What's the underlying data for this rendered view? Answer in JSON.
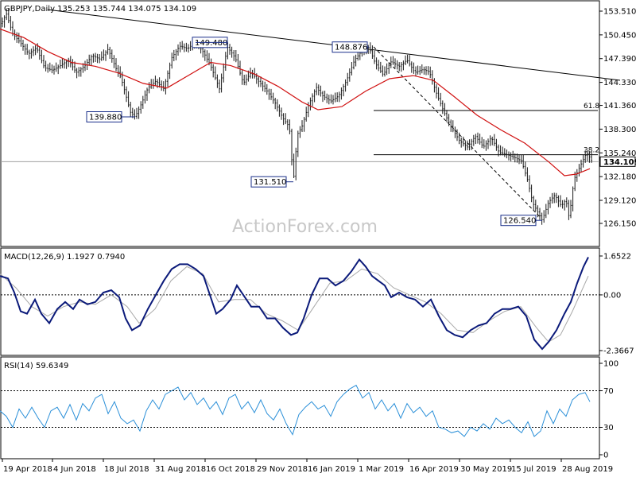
{
  "chart_data": [
    {
      "type": "candlestick",
      "symbol_line": "GBPJPY,Daily  135.253 135.744 134.075 134.109",
      "current_price": "134.109",
      "watermark": "ActionForex.com",
      "y_ticks": [
        "153.510",
        "150.450",
        "147.390",
        "144.330",
        "141.360",
        "138.300",
        "135.240",
        "132.180",
        "129.120",
        "126.150"
      ],
      "ylim": [
        126.15,
        153.51
      ],
      "x_ticks": [
        "19 Apr 2018",
        "4 Jun 2018",
        "18 Jul 2018",
        "31 Aug 2018",
        "16 Oct 2018",
        "29 Nov 2018",
        "16 Jan 2019",
        "1 Mar 2019",
        "16 Apr 2019",
        "30 May 2019",
        "15 Jul 2019",
        "28 Aug 2019"
      ],
      "price_path": [
        [
          0,
          151.5
        ],
        [
          8,
          153.2
        ],
        [
          16,
          150.6
        ],
        [
          26,
          149.4
        ],
        [
          36,
          148.0
        ],
        [
          46,
          148.8
        ],
        [
          56,
          146.2
        ],
        [
          66,
          145.9
        ],
        [
          76,
          146.5
        ],
        [
          86,
          147.2
        ],
        [
          96,
          145.6
        ],
        [
          106,
          146.4
        ],
        [
          116,
          147.8
        ],
        [
          126,
          147.3
        ],
        [
          136,
          148.6
        ],
        [
          146,
          146.1
        ],
        [
          152,
          145.0
        ],
        [
          158,
          142.8
        ],
        [
          164,
          140.5
        ],
        [
          170,
          139.88
        ],
        [
          178,
          141.6
        ],
        [
          186,
          143.6
        ],
        [
          196,
          144.5
        ],
        [
          206,
          143.5
        ],
        [
          216,
          147.5
        ],
        [
          226,
          149.0
        ],
        [
          236,
          148.7
        ],
        [
          246,
          149.48
        ],
        [
          256,
          148.2
        ],
        [
          266,
          146.2
        ],
        [
          276,
          143.5
        ],
        [
          286,
          148.9
        ],
        [
          296,
          147.5
        ],
        [
          306,
          144.2
        ],
        [
          316,
          145.6
        ],
        [
          326,
          144.4
        ],
        [
          336,
          143.2
        ],
        [
          346,
          141.7
        ],
        [
          356,
          139.7
        ],
        [
          364,
          138.6
        ],
        [
          369,
          131.51
        ],
        [
          374,
          137.6
        ],
        [
          380,
          138.7
        ],
        [
          388,
          141.4
        ],
        [
          398,
          143.7
        ],
        [
          406,
          142.6
        ],
        [
          416,
          141.9
        ],
        [
          426,
          142.6
        ],
        [
          436,
          144.6
        ],
        [
          446,
          147.2
        ],
        [
          456,
          148.5
        ],
        [
          464,
          148.876
        ],
        [
          472,
          146.8
        ],
        [
          482,
          145.3
        ],
        [
          492,
          147.0
        ],
        [
          502,
          146.4
        ],
        [
          512,
          147.2
        ],
        [
          522,
          145.6
        ],
        [
          532,
          146.0
        ],
        [
          540,
          145.7
        ],
        [
          548,
          143.2
        ],
        [
          558,
          140.6
        ],
        [
          568,
          138.5
        ],
        [
          578,
          136.8
        ],
        [
          588,
          136.0
        ],
        [
          598,
          137.4
        ],
        [
          608,
          136.0
        ],
        [
          618,
          137.2
        ],
        [
          628,
          135.3
        ],
        [
          638,
          135.0
        ],
        [
          648,
          134.6
        ],
        [
          656,
          134.2
        ],
        [
          664,
          131.6
        ],
        [
          670,
          128.8
        ],
        [
          676,
          127.7
        ],
        [
          682,
          126.54
        ],
        [
          690,
          128.9
        ],
        [
          698,
          129.8
        ],
        [
          706,
          128.4
        ],
        [
          712,
          129.2
        ],
        [
          716,
          126.8
        ],
        [
          722,
          131.8
        ],
        [
          730,
          133.6
        ],
        [
          738,
          135.3
        ],
        [
          745,
          134.109
        ]
      ],
      "sma_path": [
        [
          0,
          151.2
        ],
        [
          30,
          150.1
        ],
        [
          60,
          148.3
        ],
        [
          90,
          146.9
        ],
        [
          120,
          146.4
        ],
        [
          150,
          145.5
        ],
        [
          180,
          144.2
        ],
        [
          210,
          143.6
        ],
        [
          240,
          145.4
        ],
        [
          265,
          146.9
        ],
        [
          290,
          146.5
        ],
        [
          320,
          145.4
        ],
        [
          350,
          143.8
        ],
        [
          380,
          141.8
        ],
        [
          400,
          140.8
        ],
        [
          430,
          141.2
        ],
        [
          460,
          143.2
        ],
        [
          490,
          144.8
        ],
        [
          520,
          145.2
        ],
        [
          545,
          144.6
        ],
        [
          570,
          142.6
        ],
        [
          600,
          140.1
        ],
        [
          630,
          138.2
        ],
        [
          660,
          136.5
        ],
        [
          690,
          134.1
        ],
        [
          710,
          132.3
        ],
        [
          725,
          132.5
        ],
        [
          742,
          133.2
        ]
      ],
      "trendline": [
        [
          60,
          153.7
        ],
        [
          780,
          144.6
        ]
      ],
      "channel_line": [
        [
          470,
          148.9
        ],
        [
          680,
          126.9
        ]
      ],
      "fibonacci": [
        {
          "label": "61.8",
          "value": 140.7
        },
        {
          "label": "38.2",
          "value": 135.0
        }
      ],
      "annotations": [
        {
          "label": "149.480",
          "value": 149.48,
          "box_x": 242,
          "anchor_x": 246,
          "anchor_y": 149.48
        },
        {
          "label": "148.876",
          "value": 148.876,
          "box_x": 418,
          "anchor_x": 464,
          "anchor_y": 148.876
        },
        {
          "label": "139.880",
          "value": 139.88,
          "box_x": 109,
          "anchor_x": 170,
          "anchor_y": 139.88
        },
        {
          "label": "131.510",
          "value": 131.51,
          "box_x": 316,
          "anchor_x": 369,
          "anchor_y": 131.51
        },
        {
          "label": "126.540",
          "value": 126.54,
          "box_x": 630,
          "anchor_x": 682,
          "anchor_y": 126.54
        }
      ]
    },
    {
      "type": "line",
      "title": "MACD(12,26,9) 1.1927 0.7940",
      "y_ticks": [
        "1.6522",
        "0.00",
        "-2.3667"
      ],
      "ylim": [
        -2.3667,
        1.6522
      ],
      "zero_line": 0,
      "macd_path": [
        [
          0,
          0.8
        ],
        [
          10,
          0.7
        ],
        [
          18,
          0.1
        ],
        [
          26,
          -0.7
        ],
        [
          34,
          -0.8
        ],
        [
          44,
          -0.2
        ],
        [
          52,
          -0.8
        ],
        [
          62,
          -1.2
        ],
        [
          72,
          -0.6
        ],
        [
          82,
          -0.3
        ],
        [
          92,
          -0.6
        ],
        [
          100,
          -0.2
        ],
        [
          110,
          -0.4
        ],
        [
          120,
          -0.3
        ],
        [
          130,
          0.1
        ],
        [
          140,
          0.2
        ],
        [
          150,
          -0.1
        ],
        [
          158,
          -1.0
        ],
        [
          166,
          -1.5
        ],
        [
          176,
          -1.3
        ],
        [
          186,
          -0.6
        ],
        [
          196,
          0.0
        ],
        [
          206,
          0.6
        ],
        [
          216,
          1.1
        ],
        [
          226,
          1.3
        ],
        [
          236,
          1.3
        ],
        [
          246,
          1.1
        ],
        [
          256,
          0.8
        ],
        [
          264,
          0.0
        ],
        [
          272,
          -0.8
        ],
        [
          280,
          -0.6
        ],
        [
          290,
          -0.2
        ],
        [
          298,
          0.4
        ],
        [
          306,
          0.0
        ],
        [
          316,
          -0.5
        ],
        [
          326,
          -0.5
        ],
        [
          336,
          -1.0
        ],
        [
          346,
          -1.0
        ],
        [
          356,
          -1.4
        ],
        [
          366,
          -1.7
        ],
        [
          374,
          -1.6
        ],
        [
          382,
          -1.0
        ],
        [
          392,
          0.0
        ],
        [
          402,
          0.7
        ],
        [
          412,
          0.7
        ],
        [
          422,
          0.4
        ],
        [
          432,
          0.6
        ],
        [
          442,
          1.0
        ],
        [
          452,
          1.5
        ],
        [
          460,
          1.2
        ],
        [
          468,
          0.8
        ],
        [
          476,
          0.6
        ],
        [
          484,
          0.4
        ],
        [
          492,
          -0.1
        ],
        [
          502,
          0.1
        ],
        [
          512,
          -0.1
        ],
        [
          522,
          -0.2
        ],
        [
          532,
          -0.5
        ],
        [
          542,
          -0.2
        ],
        [
          552,
          -0.9
        ],
        [
          562,
          -1.5
        ],
        [
          572,
          -1.7
        ],
        [
          582,
          -1.8
        ],
        [
          592,
          -1.5
        ],
        [
          602,
          -1.3
        ],
        [
          612,
          -1.2
        ],
        [
          622,
          -0.8
        ],
        [
          632,
          -0.6
        ],
        [
          642,
          -0.6
        ],
        [
          652,
          -0.5
        ],
        [
          662,
          -0.9
        ],
        [
          672,
          -1.9
        ],
        [
          682,
          -2.3
        ],
        [
          690,
          -2.0
        ],
        [
          700,
          -1.5
        ],
        [
          710,
          -0.8
        ],
        [
          718,
          -0.3
        ],
        [
          726,
          0.5
        ],
        [
          734,
          1.2
        ],
        [
          740,
          1.6
        ]
      ],
      "signal_path": [
        [
          0,
          0.9
        ],
        [
          20,
          0.3
        ],
        [
          40,
          -0.5
        ],
        [
          60,
          -0.9
        ],
        [
          80,
          -0.5
        ],
        [
          100,
          -0.3
        ],
        [
          120,
          -0.4
        ],
        [
          140,
          0.0
        ],
        [
          160,
          -0.5
        ],
        [
          175,
          -1.2
        ],
        [
          195,
          -0.6
        ],
        [
          215,
          0.6
        ],
        [
          235,
          1.2
        ],
        [
          255,
          0.9
        ],
        [
          275,
          -0.3
        ],
        [
          295,
          -0.2
        ],
        [
          315,
          -0.2
        ],
        [
          335,
          -0.8
        ],
        [
          355,
          -1.1
        ],
        [
          375,
          -1.5
        ],
        [
          395,
          -0.5
        ],
        [
          415,
          0.5
        ],
        [
          435,
          0.6
        ],
        [
          455,
          1.1
        ],
        [
          475,
          0.9
        ],
        [
          495,
          0.3
        ],
        [
          515,
          0.0
        ],
        [
          535,
          -0.3
        ],
        [
          555,
          -0.8
        ],
        [
          575,
          -1.5
        ],
        [
          595,
          -1.6
        ],
        [
          615,
          -1.1
        ],
        [
          635,
          -0.7
        ],
        [
          655,
          -0.5
        ],
        [
          675,
          -1.4
        ],
        [
          690,
          -2.0
        ],
        [
          705,
          -1.7
        ],
        [
          720,
          -0.7
        ],
        [
          740,
          0.8
        ]
      ]
    },
    {
      "type": "line",
      "title": "RSI(14) 59.6349",
      "y_ticks": [
        "100",
        "70",
        "30",
        "0"
      ],
      "ylim": [
        0,
        100
      ],
      "reference_lines": [
        70,
        30
      ],
      "rsi_path": [
        [
          0,
          48
        ],
        [
          8,
          42
        ],
        [
          16,
          30
        ],
        [
          24,
          50
        ],
        [
          32,
          40
        ],
        [
          40,
          52
        ],
        [
          48,
          40
        ],
        [
          56,
          30
        ],
        [
          64,
          48
        ],
        [
          72,
          52
        ],
        [
          80,
          40
        ],
        [
          88,
          55
        ],
        [
          96,
          38
        ],
        [
          104,
          56
        ],
        [
          112,
          48
        ],
        [
          120,
          62
        ],
        [
          128,
          66
        ],
        [
          136,
          45
        ],
        [
          144,
          58
        ],
        [
          152,
          40
        ],
        [
          160,
          34
        ],
        [
          168,
          38
        ],
        [
          176,
          26
        ],
        [
          184,
          48
        ],
        [
          192,
          60
        ],
        [
          200,
          50
        ],
        [
          208,
          66
        ],
        [
          216,
          70
        ],
        [
          224,
          74
        ],
        [
          232,
          60
        ],
        [
          240,
          68
        ],
        [
          248,
          55
        ],
        [
          256,
          62
        ],
        [
          264,
          50
        ],
        [
          272,
          58
        ],
        [
          280,
          44
        ],
        [
          288,
          62
        ],
        [
          296,
          66
        ],
        [
          304,
          50
        ],
        [
          312,
          58
        ],
        [
          320,
          46
        ],
        [
          328,
          60
        ],
        [
          336,
          45
        ],
        [
          344,
          38
        ],
        [
          352,
          50
        ],
        [
          360,
          34
        ],
        [
          368,
          22
        ],
        [
          376,
          44
        ],
        [
          384,
          52
        ],
        [
          392,
          58
        ],
        [
          400,
          50
        ],
        [
          408,
          54
        ],
        [
          416,
          42
        ],
        [
          424,
          58
        ],
        [
          432,
          66
        ],
        [
          440,
          72
        ],
        [
          448,
          76
        ],
        [
          456,
          62
        ],
        [
          464,
          68
        ],
        [
          472,
          50
        ],
        [
          480,
          60
        ],
        [
          488,
          48
        ],
        [
          496,
          56
        ],
        [
          504,
          40
        ],
        [
          512,
          56
        ],
        [
          520,
          46
        ],
        [
          528,
          52
        ],
        [
          536,
          42
        ],
        [
          544,
          48
        ],
        [
          552,
          30
        ],
        [
          560,
          28
        ],
        [
          568,
          24
        ],
        [
          576,
          26
        ],
        [
          584,
          20
        ],
        [
          592,
          30
        ],
        [
          600,
          26
        ],
        [
          608,
          34
        ],
        [
          616,
          28
        ],
        [
          624,
          40
        ],
        [
          632,
          34
        ],
        [
          640,
          38
        ],
        [
          648,
          30
        ],
        [
          656,
          24
        ],
        [
          664,
          36
        ],
        [
          672,
          20
        ],
        [
          680,
          26
        ],
        [
          688,
          48
        ],
        [
          696,
          34
        ],
        [
          704,
          50
        ],
        [
          712,
          42
        ],
        [
          720,
          60
        ],
        [
          728,
          66
        ],
        [
          736,
          68
        ],
        [
          742,
          58
        ]
      ]
    }
  ]
}
